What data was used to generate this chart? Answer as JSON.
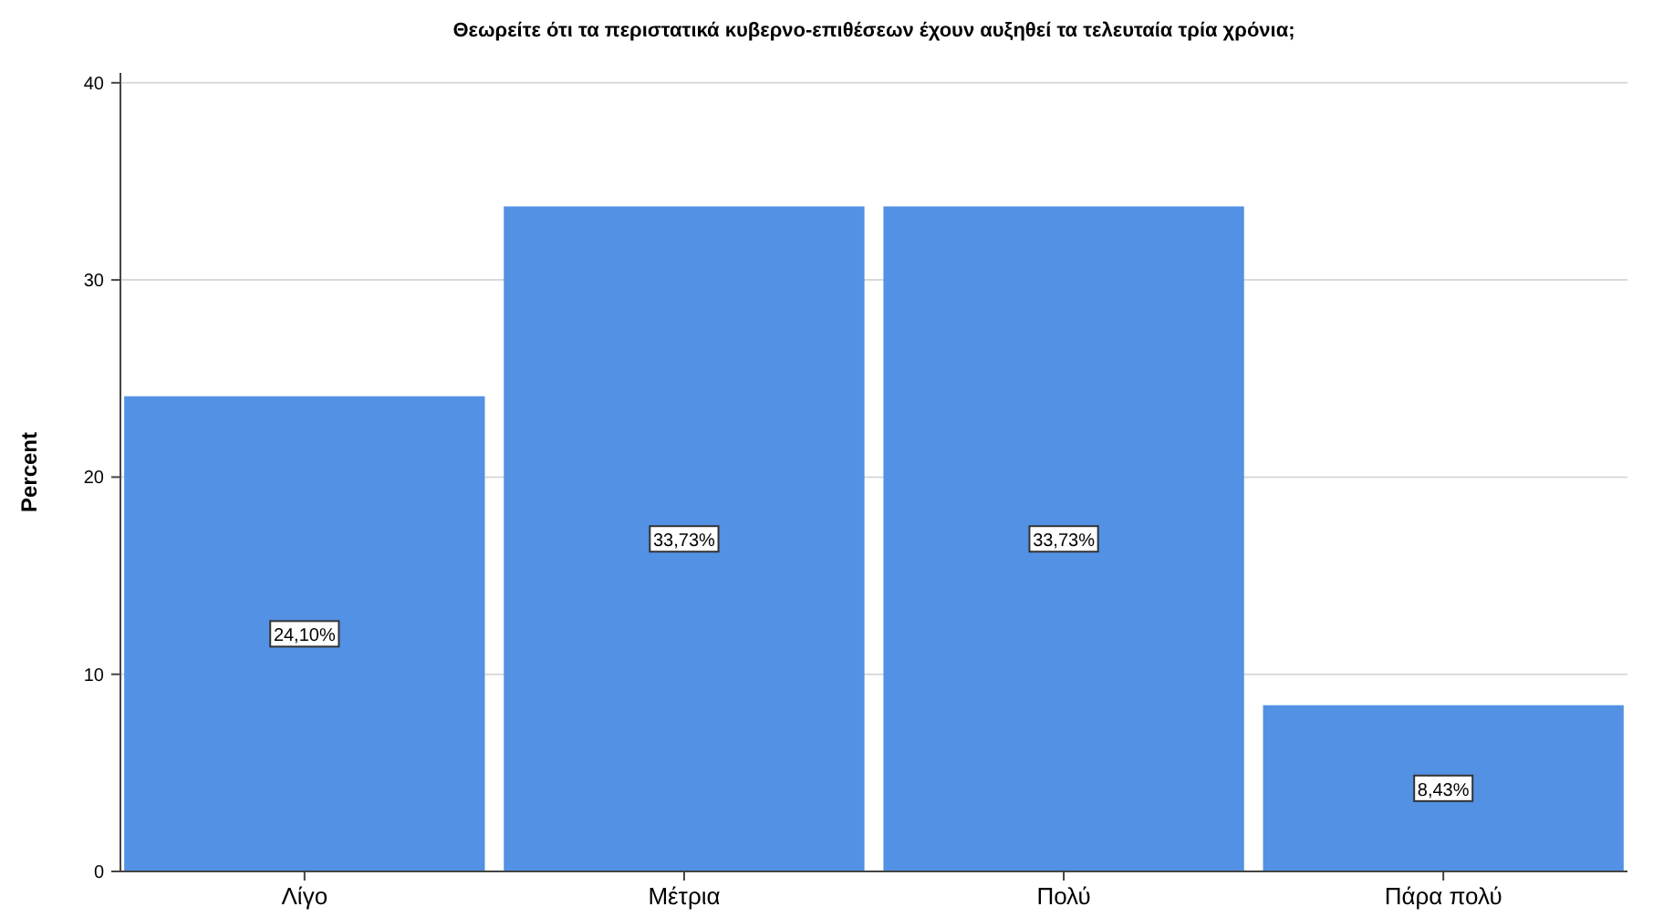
{
  "chart_data": {
    "type": "bar",
    "title": "Θεωρείτε ότι τα περιστατικά κυβερνο-επιθέσεων έχουν αυξηθεί τα τελευταία τρία χρόνια;",
    "ylabel": "Percent",
    "categories": [
      "Λίγο",
      "Μέτρια",
      "Πολύ",
      "Πάρα πολύ"
    ],
    "values": [
      24.1,
      33.73,
      33.73,
      8.43
    ],
    "color": "#5291e3",
    "value_labels": [
      "24,10%",
      "33,73%",
      "33,73%",
      "8,43%"
    ],
    "ylim": [
      0,
      40.5
    ],
    "yticks": [
      0,
      10,
      20,
      30,
      40
    ],
    "grid": "y"
  }
}
